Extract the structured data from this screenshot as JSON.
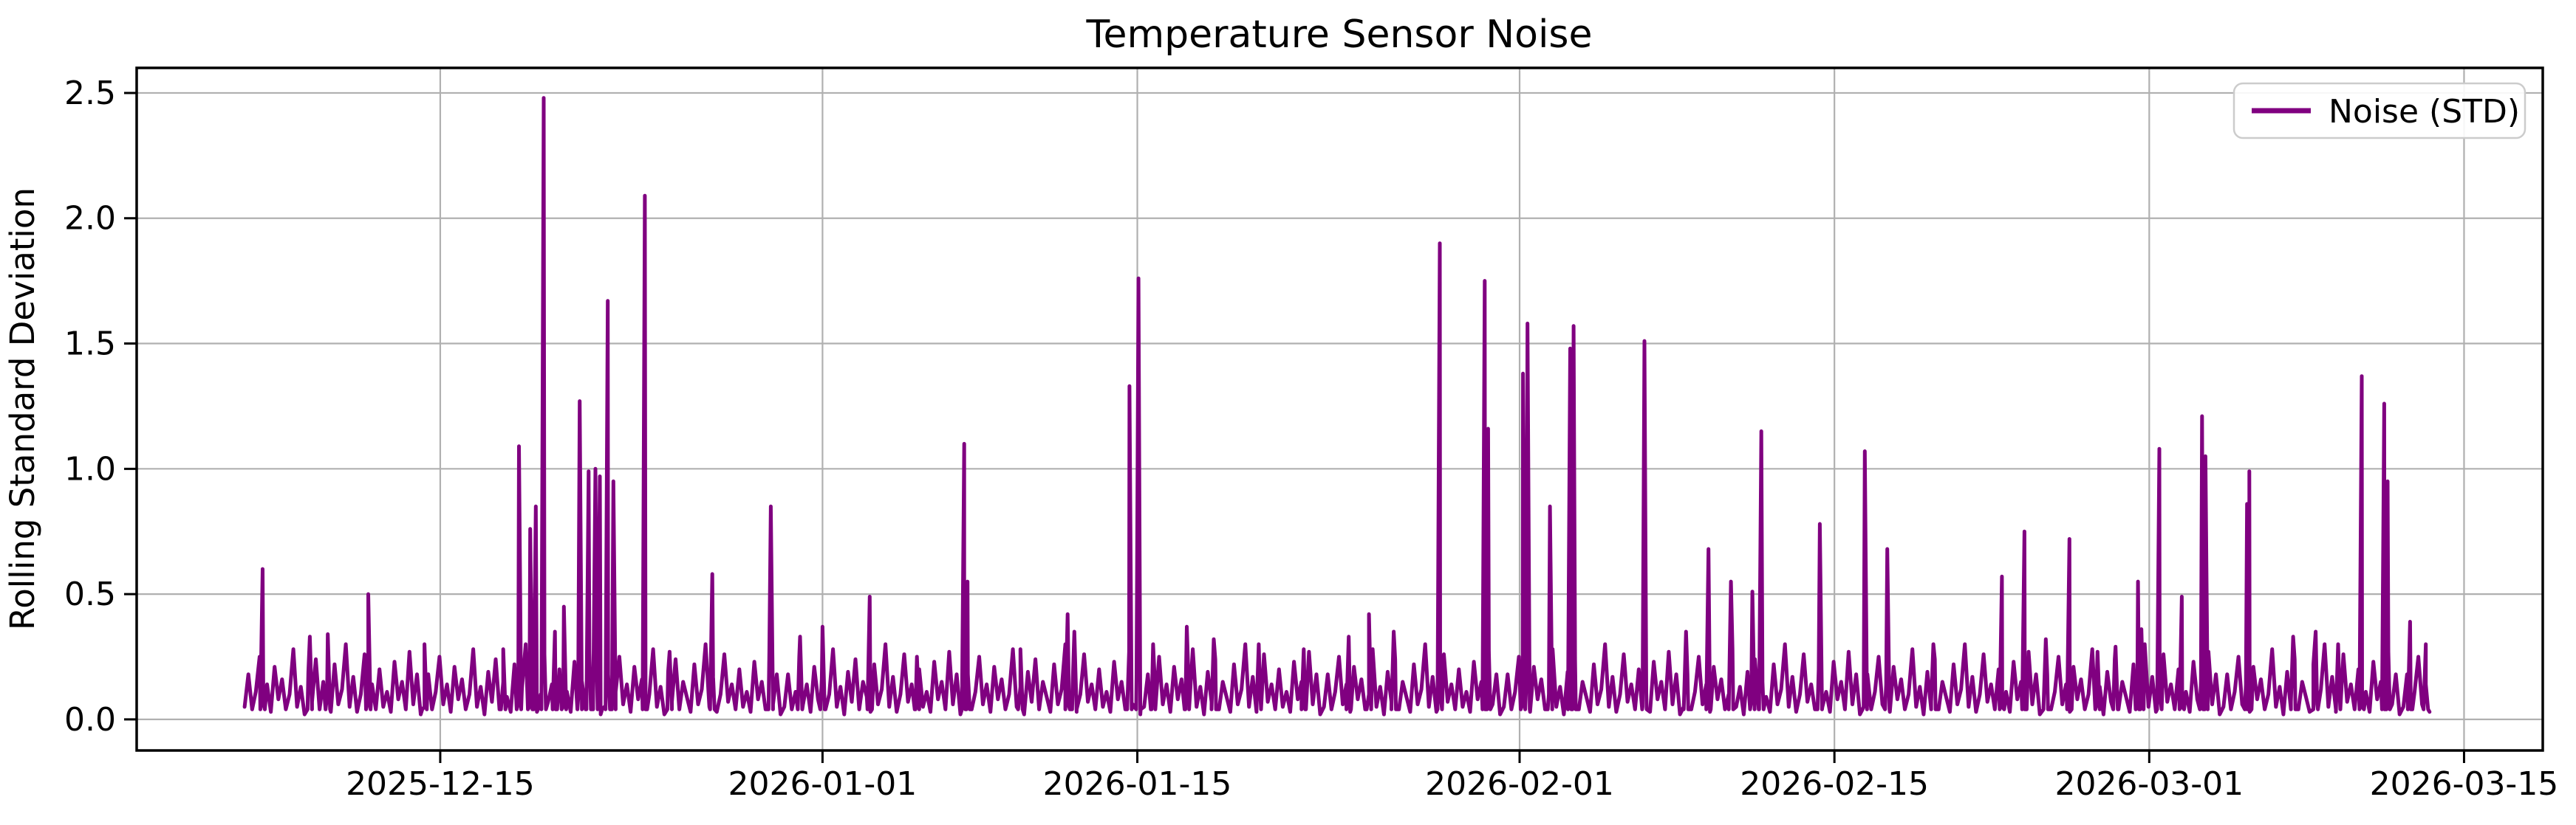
{
  "page": {
    "background": "#ffffff"
  },
  "chart_data": {
    "type": "line",
    "title": "Temperature Sensor Noise",
    "xlabel": "",
    "ylabel": "Rolling Standard Deviation",
    "grid": true,
    "grid_color": "#b0b0b0",
    "spine_color": "#000000",
    "line_color": "#800080",
    "legend": {
      "label": "Noise (STD)",
      "position": "upper right",
      "border_color": "#cccccc"
    },
    "x_axis": {
      "epoch": "2025-12-01",
      "xlim_day_offsets": [
        0.5,
        107.5
      ],
      "ticks": [
        {
          "label": "2025-12-15",
          "day_offset": 14
        },
        {
          "label": "2026-01-01",
          "day_offset": 31
        },
        {
          "label": "2026-01-15",
          "day_offset": 45
        },
        {
          "label": "2026-02-01",
          "day_offset": 62
        },
        {
          "label": "2026-02-15",
          "day_offset": 76
        },
        {
          "label": "2026-03-01",
          "day_offset": 90
        },
        {
          "label": "2026-03-15",
          "day_offset": 104
        }
      ]
    },
    "y_axis": {
      "ticks": [
        {
          "label": "0.0",
          "value": 0.0
        },
        {
          "label": "0.5",
          "value": 0.5
        },
        {
          "label": "1.0",
          "value": 1.0
        },
        {
          "label": "1.5",
          "value": 1.5
        },
        {
          "label": "2.0",
          "value": 2.0
        },
        {
          "label": "2.5",
          "value": 2.5
        }
      ],
      "ylim": [
        -0.124,
        2.6
      ]
    },
    "series": [
      {
        "name": "Noise (STD)",
        "start_day_offset": 5.3,
        "end_day_offset": 102.6,
        "baseline_samples_per_day": 6,
        "baseline_pattern": [
          0.05,
          0.18,
          0.04,
          0.11,
          0.25,
          0.06,
          0.14,
          0.03,
          0.21,
          0.08,
          0.16,
          0.04,
          0.1,
          0.28,
          0.05,
          0.13,
          0.02,
          0.19,
          0.07,
          0.24,
          0.04,
          0.15,
          0.09,
          0.03,
          0.22,
          0.06,
          0.12,
          0.3,
          0.05,
          0.17,
          0.03,
          0.1,
          0.26,
          0.07,
          0.14,
          0.04,
          0.2,
          0.05,
          0.11,
          0.03,
          0.23,
          0.08,
          0.15,
          0.04,
          0.27,
          0.06,
          0.18,
          0.02
        ],
        "spikes": [
          [
            6.1,
            0.6
          ],
          [
            8.2,
            0.33
          ],
          [
            9.0,
            0.34
          ],
          [
            10.8,
            0.5
          ],
          [
            13.3,
            0.3
          ],
          [
            16.8,
            0.28
          ],
          [
            17.5,
            1.09
          ],
          [
            18.0,
            0.76
          ],
          [
            18.25,
            0.85
          ],
          [
            18.6,
            2.48
          ],
          [
            19.1,
            0.35
          ],
          [
            19.5,
            0.45
          ],
          [
            20.2,
            1.27
          ],
          [
            20.6,
            0.99
          ],
          [
            20.9,
            1.0
          ],
          [
            21.1,
            0.97
          ],
          [
            21.45,
            1.67
          ],
          [
            21.7,
            0.95
          ],
          [
            23.1,
            2.09
          ],
          [
            24.2,
            0.27
          ],
          [
            26.1,
            0.58
          ],
          [
            28.7,
            0.85
          ],
          [
            30.0,
            0.33
          ],
          [
            31.0,
            0.37
          ],
          [
            33.1,
            0.49
          ],
          [
            35.2,
            0.25
          ],
          [
            37.3,
            1.1
          ],
          [
            37.45,
            0.55
          ],
          [
            39.8,
            0.28
          ],
          [
            41.9,
            0.42
          ],
          [
            42.2,
            0.35
          ],
          [
            44.65,
            1.33
          ],
          [
            45.05,
            1.76
          ],
          [
            45.7,
            0.3
          ],
          [
            47.2,
            0.37
          ],
          [
            48.4,
            0.32
          ],
          [
            50.4,
            0.3
          ],
          [
            52.4,
            0.28
          ],
          [
            54.4,
            0.33
          ],
          [
            55.3,
            0.42
          ],
          [
            56.4,
            0.35
          ],
          [
            58.45,
            1.9
          ],
          [
            60.45,
            1.75
          ],
          [
            60.6,
            1.16
          ],
          [
            62.15,
            1.38
          ],
          [
            62.35,
            1.58
          ],
          [
            63.35,
            0.85
          ],
          [
            64.25,
            1.48
          ],
          [
            64.4,
            1.57
          ],
          [
            67.55,
            1.51
          ],
          [
            69.4,
            0.35
          ],
          [
            70.4,
            0.68
          ],
          [
            71.4,
            0.55
          ],
          [
            72.35,
            0.51
          ],
          [
            72.75,
            1.15
          ],
          [
            75.35,
            0.78
          ],
          [
            77.35,
            1.07
          ],
          [
            78.35,
            0.68
          ],
          [
            80.4,
            0.3
          ],
          [
            83.45,
            0.57
          ],
          [
            84.45,
            0.75
          ],
          [
            85.4,
            0.32
          ],
          [
            86.45,
            0.72
          ],
          [
            87.7,
            0.27
          ],
          [
            88.5,
            0.29
          ],
          [
            89.5,
            0.55
          ],
          [
            89.65,
            0.36
          ],
          [
            90.45,
            1.08
          ],
          [
            91.45,
            0.49
          ],
          [
            92.35,
            1.21
          ],
          [
            92.5,
            1.05
          ],
          [
            94.35,
            0.86
          ],
          [
            94.45,
            0.99
          ],
          [
            96.4,
            0.33
          ],
          [
            97.4,
            0.35
          ],
          [
            98.4,
            0.3
          ],
          [
            99.45,
            1.37
          ],
          [
            100.45,
            1.26
          ],
          [
            100.6,
            0.95
          ],
          [
            101.6,
            0.39
          ],
          [
            102.3,
            0.3
          ]
        ]
      }
    ]
  }
}
